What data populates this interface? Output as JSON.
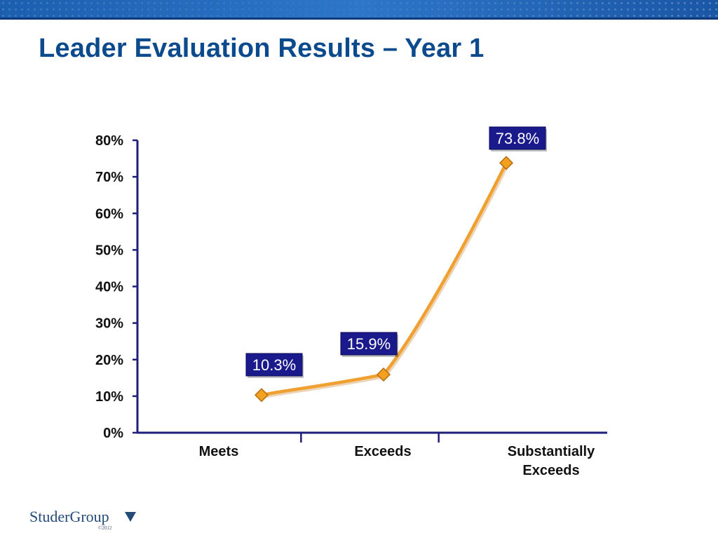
{
  "slide": {
    "title": "Leader Evaluation Results – Year 1"
  },
  "logo": {
    "text": "StuderGroup",
    "copyright": "©2012"
  },
  "colors": {
    "title": "#0b4a8c",
    "axis": "#1f1f7a",
    "line": "#f0a030",
    "marker": "#f2a020",
    "label_bg": "#1a1a8c",
    "label_text": "#ffffff",
    "band": "#1c5fb0"
  },
  "chart_data": {
    "type": "line",
    "title": "",
    "xlabel": "",
    "ylabel": "",
    "categories": [
      "Meets",
      "Exceeds",
      "Substantially Exceeds"
    ],
    "category_lines": [
      [
        "Meets"
      ],
      [
        "Exceeds"
      ],
      [
        "Substantially",
        "Exceeds"
      ]
    ],
    "values": [
      10.3,
      15.9,
      73.8
    ],
    "data_labels": [
      "10.3%",
      "15.9%",
      "73.8%"
    ],
    "yticks": [
      "0%",
      "10%",
      "20%",
      "30%",
      "40%",
      "50%",
      "60%",
      "70%",
      "80%"
    ],
    "ytick_values": [
      0,
      10,
      20,
      30,
      40,
      50,
      60,
      70,
      80
    ],
    "ylim": [
      0,
      80
    ],
    "smooth": true,
    "grid": false,
    "legend": "none"
  }
}
